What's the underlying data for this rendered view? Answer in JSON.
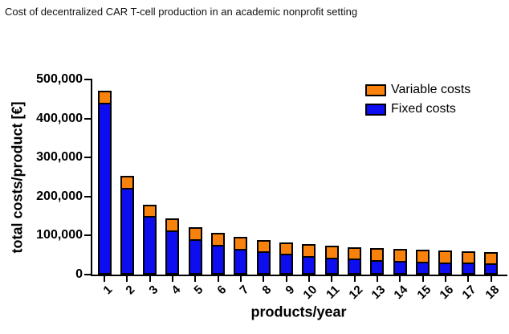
{
  "figure": {
    "title": "Cost of decentralized CAR T-cell production in an academic nonprofit setting"
  },
  "chart_data": {
    "type": "bar",
    "stacked": true,
    "title": "Cost of decentralized CAR T-cell production in an academic nonprofit setting",
    "xlabel": "products/year",
    "ylabel": "total costs/product [€]",
    "ylim": [
      0,
      500000
    ],
    "grid": false,
    "ytick_values": [
      0,
      100000,
      200000,
      300000,
      400000,
      500000
    ],
    "ytick_labels": [
      "0",
      "100,000",
      "200,000",
      "300,000",
      "400,000",
      "500,000"
    ],
    "categories": [
      "1",
      "2",
      "3",
      "4",
      "5",
      "6",
      "7",
      "8",
      "9",
      "10",
      "11",
      "12",
      "13",
      "14",
      "15",
      "16",
      "17",
      "18"
    ],
    "series": [
      {
        "name": "Fixed costs",
        "color": "#0d0df0",
        "values": [
          437000,
          218500,
          145667,
          109250,
          87400,
          72833,
          62429,
          54625,
          48556,
          43700,
          39727,
          36417,
          33615,
          31214,
          29133,
          27313,
          25706,
          24278
        ]
      },
      {
        "name": "Variable costs",
        "color": "#f8820c",
        "values": [
          34000,
          34000,
          34000,
          34000,
          34000,
          34000,
          34000,
          34000,
          34000,
          34000,
          34000,
          34000,
          34000,
          34000,
          34000,
          34000,
          34000,
          34000
        ]
      }
    ],
    "totals": [
      471000,
      252500,
      179667,
      143250,
      121400,
      106833,
      96429,
      88625,
      82556,
      77700,
      73727,
      70417,
      67615,
      65214,
      63133,
      61313,
      59706,
      58278
    ],
    "legend": {
      "position": "top-right",
      "entries": [
        {
          "label": "Variable costs",
          "color": "#f8820c"
        },
        {
          "label": "Fixed costs",
          "color": "#0d0df0"
        }
      ]
    },
    "bar_outline_color": "#000000",
    "axis_color": "#000000"
  }
}
